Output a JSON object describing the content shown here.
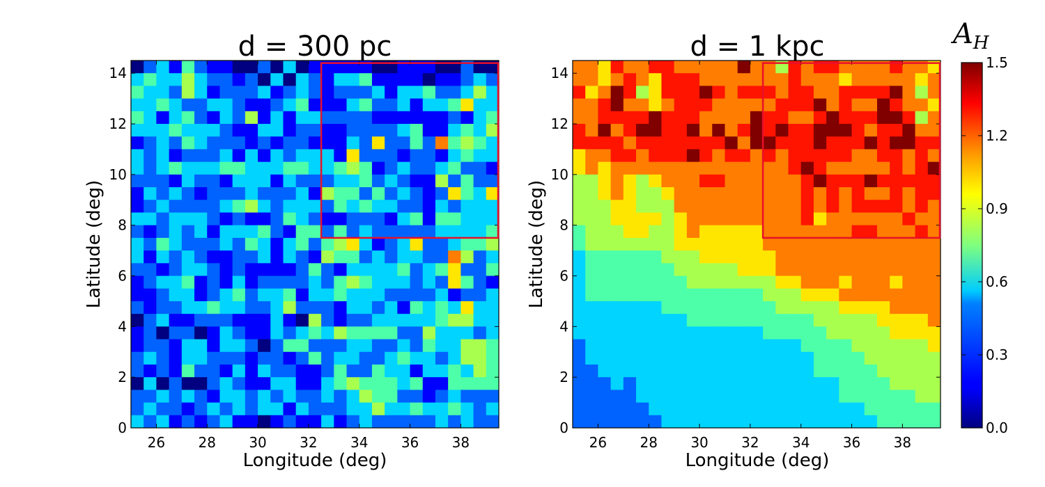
{
  "chart_data": [
    {
      "type": "heatmap",
      "title": "d = 300 pc",
      "xlabel": "Longitude (deg)",
      "ylabel": "Latitude (deg)",
      "xlim": [
        25,
        39.5
      ],
      "ylim": [
        0,
        14.5
      ],
      "xticks": [
        "26",
        "28",
        "30",
        "32",
        "34",
        "36",
        "38"
      ],
      "yticks": [
        "0",
        "2",
        "4",
        "6",
        "8",
        "10",
        "12",
        "14"
      ],
      "cell_size_deg": 0.5,
      "highlight_box": {
        "lon_min": 32.5,
        "lon_max": 39.5,
        "lat_min": 7.5,
        "lat_max": 14.4,
        "color": "#e8102a"
      },
      "rows_top_to_bottom": [
        "02314211002030111110011100200",
        "34335322120303213341111011232",
        "43325312223123212223133422353",
        "33432233211234111342231334633",
        "43134213251313322221111112134",
        "33343332113312211222234113435",
        "12324322212122111326224274543",
        "32312223131323331622212213433",
        "32343334433344334541232234221",
        "22213221333132223342321152422",
        "13232122232223154424232126436",
        "12322223453233324343322132333",
        "33233321211243211222134144333",
        "21232313334214424232222233334",
        "32432223243134245631236223445",
        "31323211223132154423233227523",
        "22123321211112421333342346224",
        "12334121312222324543332326421",
        "11233123423341334333222231223",
        "21223343322352221332314343633",
        "02311222111310521223333345533",
        "12022013211323435444422533323",
        "12213313320244222332232433554",
        "23213322212212423322343323554",
        "21214221313221124224331334354",
        "03020023211331134544434114444",
        "22323213323232232354422123222",
        "23221232323313222335334334323",
        "32312123110121131232222232322"
      ]
    },
    {
      "type": "heatmap",
      "title": "d = 1 kpc",
      "xlabel": "Longitude (deg)",
      "ylabel": "Latitude (deg)",
      "xlim": [
        25,
        39.5
      ],
      "ylim": [
        0,
        14.5
      ],
      "xticks": [
        "26",
        "28",
        "30",
        "32",
        "34",
        "36",
        "38"
      ],
      "yticks": [
        "0",
        "2",
        "4",
        "6",
        "8",
        "10",
        "12",
        "14"
      ],
      "cell_size_deg": 0.5,
      "highlight_box": {
        "lon_min": 32.5,
        "lon_max": 39.5,
        "lat_min": 7.5,
        "lat_max": 14.4,
        "color": "#e8102a"
      },
      "rows_top_to_bottom": [
        "77687788777779775878877778776",
        "77678768887777777877767777767",
        "86798568889878887887788889757",
        "77897767888777778889787798776",
        "77888898887777988778988899857",
        "87978998897978989889998788977",
        "88887888888897998889888989988",
        "67788788898788787888887788787",
        "67677777777777777898777778789",
        "55676567778877777789888988888",
        "55676556777777777787878778788",
        "55566555777777777787878888787",
        "55566665677777777786777777877",
        "45556655676666677777778877787",
        "45555555666666677777777777777",
        "34444445556666667777777777777",
        "34444444555556667777777777777",
        "34444444455555556677767776777",
        "34444444444444455566677777777",
        "33333334444444445555566667777",
        "33333333344444444445555566667",
        "33333333333333344444555556666",
        "23333333333333333344445555556",
        "23333333333333333334444555555",
        "22333333333333333334444455555",
        "22232333333333333333344445555",
        "22222333333333333333344444455",
        "22222233333333333333333444444",
        "22222223333333333333333344444"
      ]
    }
  ],
  "colorbar": {
    "label": "A",
    "label_subscript": "H",
    "min": 0.0,
    "max": 1.5,
    "ticks": [
      "0.0",
      "0.3",
      "0.6",
      "0.9",
      "1.2",
      "1.5"
    ]
  }
}
